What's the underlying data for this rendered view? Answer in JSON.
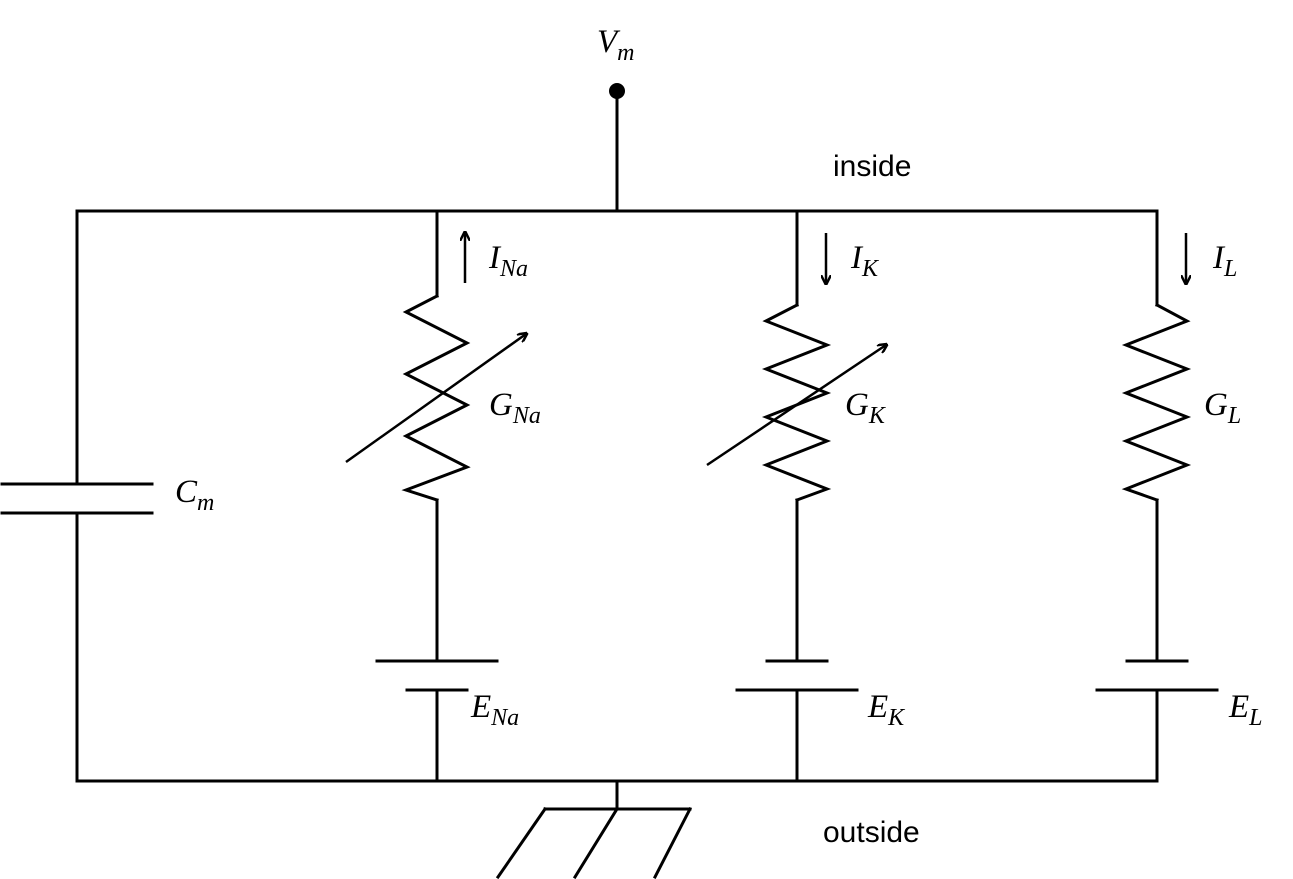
{
  "labels": {
    "inside": "inside",
    "outside": "outside",
    "vm": {
      "main": "V",
      "sub": "m"
    },
    "cm": {
      "main": "C",
      "sub": "m"
    },
    "i_na": {
      "main": "I",
      "sub": "Na"
    },
    "i_k": {
      "main": "I",
      "sub": "K"
    },
    "i_l": {
      "main": "I",
      "sub": "L"
    },
    "g_na": {
      "main": "G",
      "sub": "Na"
    },
    "g_k": {
      "main": "G",
      "sub": "K"
    },
    "g_l": {
      "main": "G",
      "sub": "L"
    },
    "e_na": {
      "main": "E",
      "sub": "Na"
    },
    "e_k": {
      "main": "E",
      "sub": "K"
    },
    "e_l": {
      "main": "E",
      "sub": "L"
    }
  },
  "current_directions": {
    "i_na": "up",
    "i_k": "down",
    "i_l": "down"
  },
  "variable_conductances": [
    "g_na",
    "g_k"
  ]
}
